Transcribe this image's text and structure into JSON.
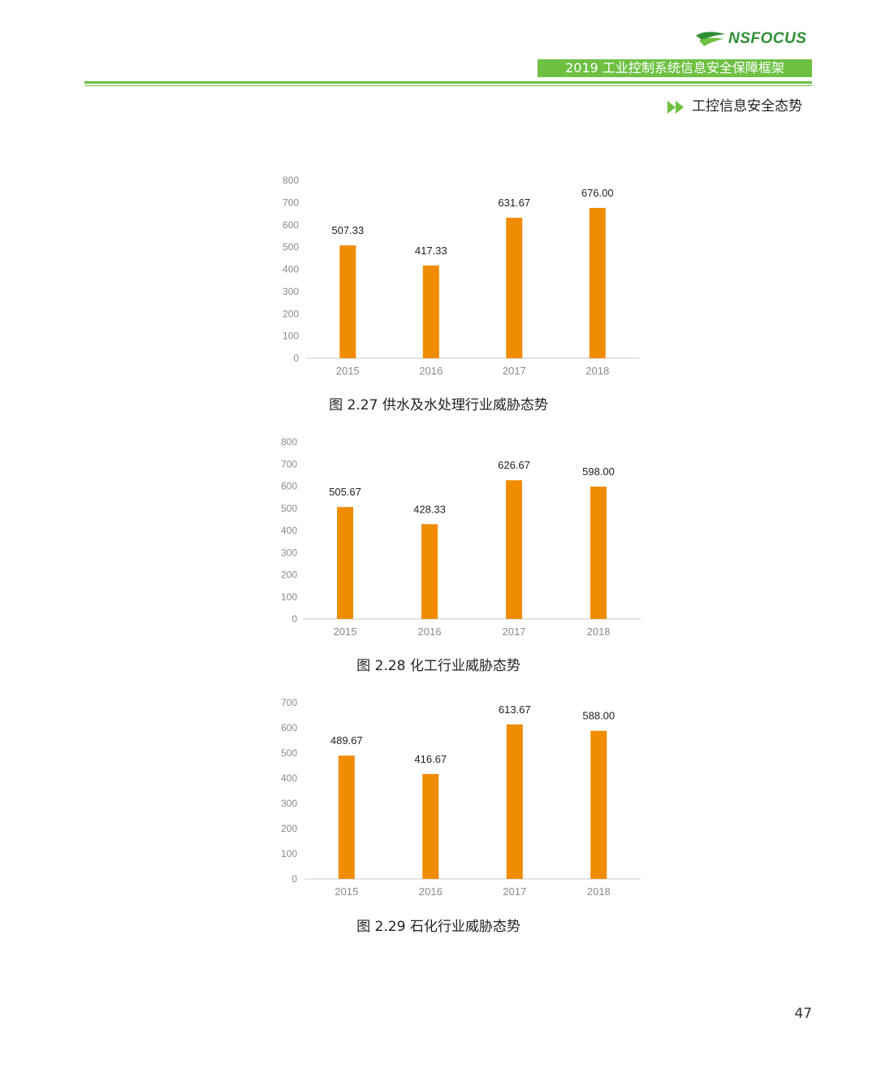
{
  "header": {
    "brand": "NSFOCUS",
    "doc_title": "2019 工业控制系统信息安全保障框架",
    "section": "工控信息安全态势",
    "colors": {
      "brand_green": "#6ec043",
      "logo_green": "#2e8f35"
    },
    "section_icon": "double-chevron-right-icon"
  },
  "chart_data": [
    {
      "type": "bar",
      "title": "",
      "caption": "图 2.27 供水及水处理行业威胁态势",
      "categories": [
        "2015",
        "2016",
        "2017",
        "2018"
      ],
      "values": [
        507.33,
        417.33,
        631.67,
        676.0
      ],
      "value_labels": [
        "507.33",
        "417.33",
        "631.67",
        "676.00"
      ],
      "ylim": [
        0,
        800
      ],
      "yticks": [
        0,
        100,
        200,
        300,
        400,
        500,
        600,
        700,
        800
      ],
      "color": "#f08c00",
      "grid": false
    },
    {
      "type": "bar",
      "title": "",
      "caption": "图 2.28 化工行业威胁态势",
      "categories": [
        "2015",
        "2016",
        "2017",
        "2018"
      ],
      "values": [
        505.67,
        428.33,
        626.67,
        598.0
      ],
      "value_labels": [
        "505.67",
        "428.33",
        "626.67",
        "598.00"
      ],
      "ylim": [
        0,
        800
      ],
      "yticks": [
        0,
        100,
        200,
        300,
        400,
        500,
        600,
        700,
        800
      ],
      "color": "#f08c00",
      "grid": false
    },
    {
      "type": "bar",
      "title": "",
      "caption": "图 2.29 石化行业威胁态势",
      "categories": [
        "2015",
        "2016",
        "2017",
        "2018"
      ],
      "values": [
        489.67,
        416.67,
        613.67,
        588.0
      ],
      "value_labels": [
        "489.67",
        "416.67",
        "613.67",
        "588.00"
      ],
      "ylim": [
        0,
        700
      ],
      "yticks": [
        0,
        100,
        200,
        300,
        400,
        500,
        600,
        700
      ],
      "color": "#f08c00",
      "grid": false
    }
  ],
  "footer": {
    "page_number": "47"
  }
}
